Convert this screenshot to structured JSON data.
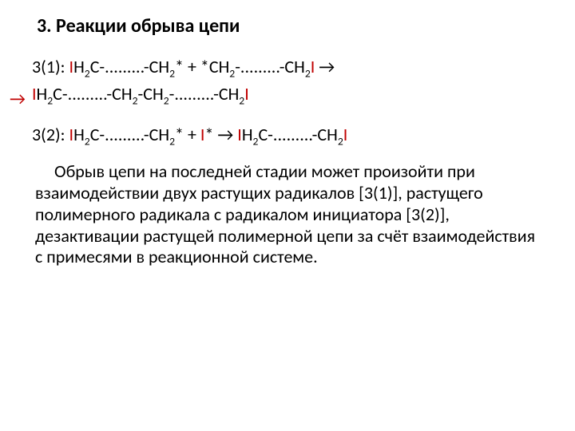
{
  "title": "3. Реакции обрыва цепи",
  "colors": {
    "text": "#000000",
    "accent": "#c00000",
    "background": "#ffffff"
  },
  "font": {
    "title_size": 24,
    "body_size": 22,
    "family": "Calibri"
  },
  "eq1": {
    "lead": "3(1): ",
    "I1": "I",
    "p1a": "H",
    "p1s": "2",
    "p1b": "C-.........-CH",
    "p1s2": "2",
    "p1c": "*   +   *CH",
    "p1s3": "2",
    "p1d": "-.........-CH",
    "p1s4": "2",
    "I2": "I",
    "arr": "  →"
  },
  "eq2": {
    "I1": "I",
    "p1a": "H",
    "p1s": "2",
    "p1b": "C-.........-CH",
    "p1s2": "2",
    "p1c": "-CH",
    "p1s3": "2",
    "p1d": "-.........-CH",
    "p1s4": "2",
    "I2": "I",
    "side_arrow": "→"
  },
  "eq3": {
    "lead": "3(2): ",
    "I1": "I",
    "p1a": "H",
    "p1s": "2",
    "p1b": "C-.........-CH",
    "p1s2": "2",
    "p1c": "*   +   ",
    "Istar": "I",
    "star": "*   →  ",
    "I2": "I",
    "p2a": "H",
    "p2s": "2",
    "p2b": "C-.........-CH",
    "p2s2": "2",
    "I3": "I"
  },
  "body_text": "Обрыв цепи на последней стадии может произойти при взаимодействии двух растущих радикалов [3(1)], растущего полимерного радикала с радикалом инициатора [3(2)], дезактивации растущей полимерной цепи за счёт взаимодействия с примесями в реакционной системе."
}
